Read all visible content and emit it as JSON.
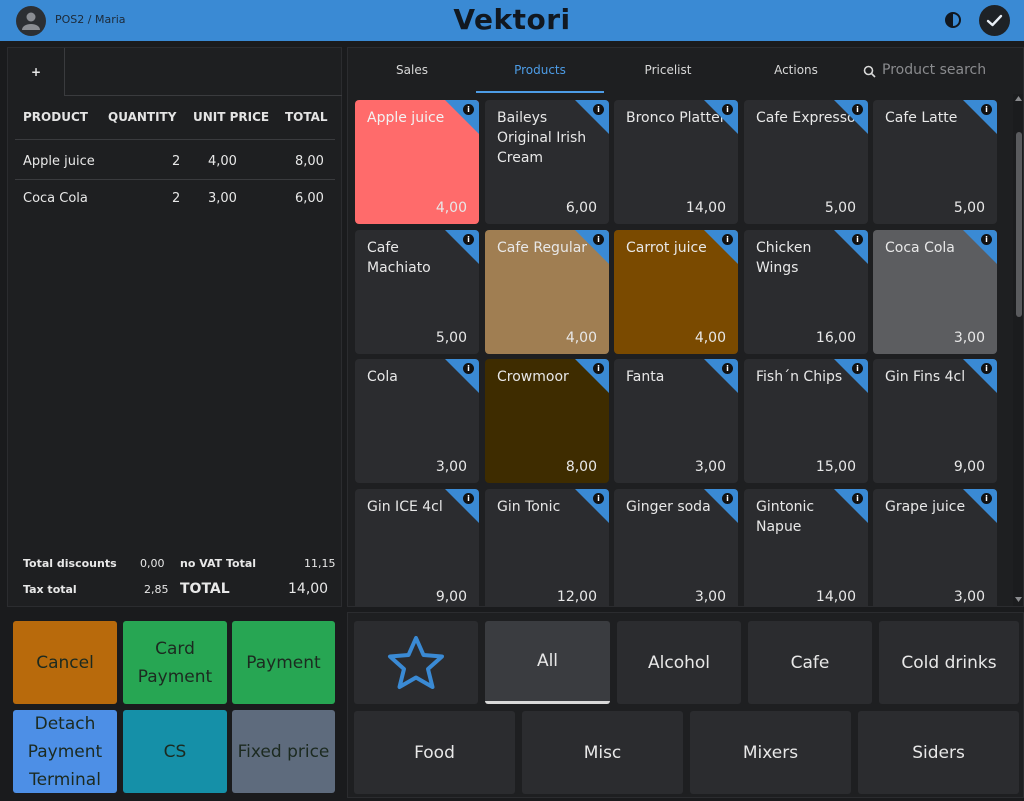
{
  "header": {
    "user": "POS2 / Maria",
    "brand": "Vektori"
  },
  "order": {
    "new_tab_label": "+",
    "columns": [
      "PRODUCT",
      "QUANTITY",
      "UNIT PRICE",
      "TOTAL"
    ],
    "rows": [
      {
        "product": "Apple juice",
        "quantity": "2",
        "unit_price": "4,00",
        "total": "8,00"
      },
      {
        "product": "Coca Cola",
        "quantity": "2",
        "unit_price": "3,00",
        "total": "6,00"
      }
    ],
    "summary": {
      "total_discounts_label": "Total discounts",
      "total_discounts": "0,00",
      "no_vat_total_label": "no VAT Total",
      "no_vat_total": "11,15",
      "tax_total_label": "Tax total",
      "tax_total": "2,85",
      "total_label": "TOTAL",
      "total": "14,00"
    }
  },
  "tabs": [
    {
      "label": "Sales",
      "active": false
    },
    {
      "label": "Products",
      "active": true
    },
    {
      "label": "Pricelist",
      "active": false
    },
    {
      "label": "Actions",
      "active": false
    }
  ],
  "search": {
    "placeholder": "Product search"
  },
  "products": [
    {
      "name": "Apple juice",
      "price": "4,00",
      "color": "#ff6b6b",
      "text": "#f2f2f2"
    },
    {
      "name": "Baileys Original Irish Cream",
      "price": "6,00",
      "color": "#2b2c2f"
    },
    {
      "name": "Bronco Platter",
      "price": "14,00",
      "color": "#2b2c2f"
    },
    {
      "name": "Cafe Expresso",
      "price": "5,00",
      "color": "#2b2c2f"
    },
    {
      "name": "Cafe Latte",
      "price": "5,00",
      "color": "#2b2c2f"
    },
    {
      "name": "Cafe Machiato",
      "price": "5,00",
      "color": "#2b2c2f"
    },
    {
      "name": "Cafe Regular",
      "price": "4,00",
      "color": "#a07e52"
    },
    {
      "name": "Carrot juice",
      "price": "4,00",
      "color": "#7a4a00"
    },
    {
      "name": "Chicken Wings",
      "price": "16,00",
      "color": "#2b2c2f"
    },
    {
      "name": "Coca Cola",
      "price": "3,00",
      "color": "#5c5d60"
    },
    {
      "name": "Cola",
      "price": "3,00",
      "color": "#2b2c2f"
    },
    {
      "name": "Crowmoor",
      "price": "8,00",
      "color": "#3e2c00"
    },
    {
      "name": "Fanta",
      "price": "3,00",
      "color": "#2b2c2f"
    },
    {
      "name": "Fish´n Chips",
      "price": "15,00",
      "color": "#2b2c2f"
    },
    {
      "name": "Gin Fins 4cl",
      "price": "9,00",
      "color": "#2b2c2f"
    },
    {
      "name": "Gin ICE 4cl",
      "price": "9,00",
      "color": "#2b2c2f"
    },
    {
      "name": "Gin Tonic",
      "price": "12,00",
      "color": "#2b2c2f"
    },
    {
      "name": "Ginger soda",
      "price": "3,00",
      "color": "#2b2c2f"
    },
    {
      "name": "Gintonic Napue",
      "price": "14,00",
      "color": "#2b2c2f"
    },
    {
      "name": "Grape juice",
      "price": "3,00",
      "color": "#2b2c2f"
    }
  ],
  "actions": {
    "cancel": "Cancel",
    "card_payment": "Card Payment",
    "payment": "Payment",
    "detach": "Detach Payment Terminal",
    "cs": "CS",
    "fixed_price": "Fixed price"
  },
  "categories": {
    "favorites_icon": "star-icon",
    "row1": [
      "All",
      "Alcohol",
      "Cafe",
      "Cold drinks"
    ],
    "row2": [
      "Food",
      "Misc",
      "Mixers",
      "Siders"
    ],
    "active": "All"
  },
  "colors": {
    "accent": "#3a8ad4",
    "cancel": "#b86a0c",
    "green": "#27a653",
    "blue": "#4d8fe6",
    "teal": "#1590a8",
    "slate": "#5e6b7d"
  }
}
